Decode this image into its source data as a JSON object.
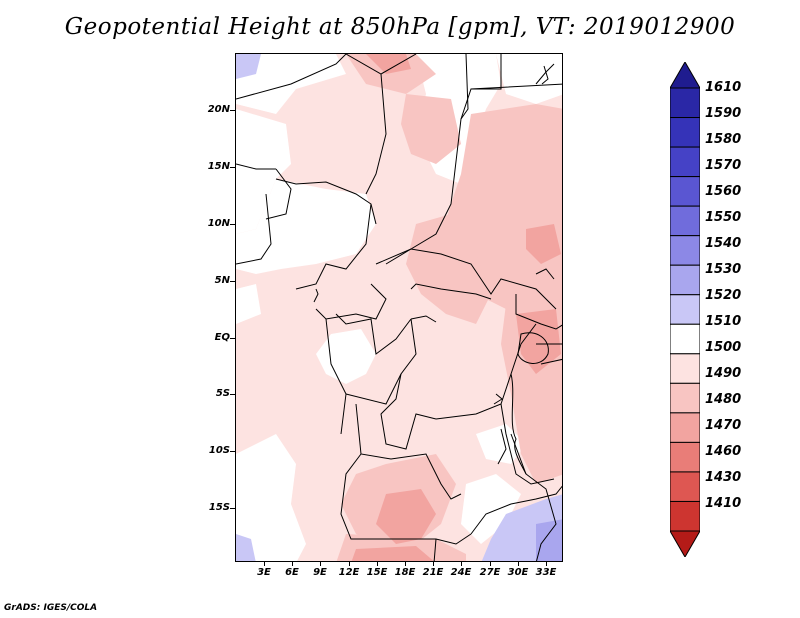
{
  "title": "Geopotential Height at 850hPa [gpm], VT: 2019012900",
  "footer": "GrADS: IGES/COLA",
  "map": {
    "lat_labels": [
      "20N",
      "15N",
      "10N",
      "5N",
      "EQ",
      "5S",
      "10S",
      "15S"
    ],
    "lon_labels": [
      "3E",
      "6E",
      "9E",
      "12E",
      "15E",
      "18E",
      "21E",
      "24E",
      "27E",
      "30E",
      "33E"
    ]
  },
  "colorbar": {
    "levels": [
      "1610",
      "1590",
      "1580",
      "1570",
      "1560",
      "1550",
      "1540",
      "1530",
      "1520",
      "1510",
      "1500",
      "1490",
      "1480",
      "1470",
      "1460",
      "1430",
      "1410"
    ],
    "colors": [
      "#1f1c8f",
      "#2a27a6",
      "#3533b8",
      "#4542c6",
      "#5a56d2",
      "#706cdc",
      "#8c88e6",
      "#a9a6ee",
      "#c9c7f6",
      "#ffffff",
      "#fde3e1",
      "#f8c5c2",
      "#f2a4a0",
      "#e97d78",
      "#de5752",
      "#cd3530",
      "#b41b18"
    ]
  }
}
